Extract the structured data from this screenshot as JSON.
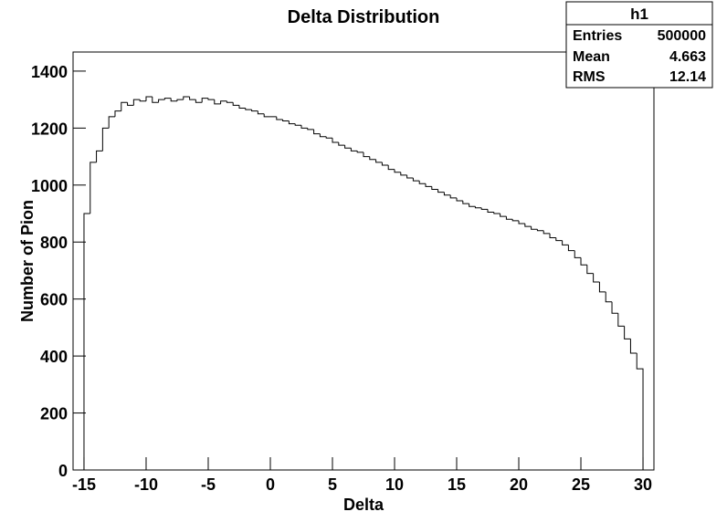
{
  "chart_data": {
    "type": "histogram",
    "title": "Delta Distribution",
    "x_label": "Delta",
    "y_label": "Number of Pion",
    "bins": [
      -15,
      -14.5,
      -14,
      -13.5,
      -13,
      -12.5,
      -12,
      -11.5,
      -11,
      -10.5,
      -10,
      -9.5,
      -9,
      -8.5,
      -8,
      -7.5,
      -7,
      -6.5,
      -6,
      -5.5,
      -5,
      -4.5,
      -4,
      -3.5,
      -3,
      -2.5,
      -2,
      -1.5,
      -1,
      -0.5,
      0,
      0.5,
      1,
      1.5,
      2,
      2.5,
      3,
      3.5,
      4,
      4.5,
      5,
      5.5,
      6,
      6.5,
      7,
      7.5,
      8,
      8.5,
      9,
      9.5,
      10,
      10.5,
      11,
      11.5,
      12,
      12.5,
      13,
      13.5,
      14,
      14.5,
      15,
      15.5,
      16,
      16.5,
      17,
      17.5,
      18,
      18.5,
      19,
      19.5,
      20,
      20.5,
      21,
      21.5,
      22,
      22.5,
      23,
      23.5,
      24,
      24.5,
      25,
      25.5,
      26,
      26.5,
      27,
      27.5,
      28,
      28.5,
      29,
      29.5,
      30
    ],
    "values": [
      900,
      1080,
      1120,
      1200,
      1240,
      1260,
      1290,
      1280,
      1300,
      1295,
      1310,
      1290,
      1300,
      1305,
      1295,
      1300,
      1310,
      1300,
      1290,
      1305,
      1300,
      1285,
      1295,
      1290,
      1280,
      1270,
      1265,
      1260,
      1250,
      1240,
      1240,
      1230,
      1225,
      1215,
      1210,
      1200,
      1195,
      1180,
      1170,
      1165,
      1150,
      1140,
      1130,
      1120,
      1115,
      1100,
      1090,
      1080,
      1070,
      1055,
      1045,
      1035,
      1025,
      1015,
      1005,
      995,
      985,
      975,
      965,
      955,
      945,
      935,
      925,
      920,
      915,
      905,
      900,
      890,
      880,
      875,
      865,
      855,
      845,
      840,
      830,
      815,
      805,
      790,
      770,
      745,
      720,
      690,
      660,
      625,
      590,
      550,
      505,
      460,
      410,
      355
    ],
    "color": "#000000",
    "xlim": [
      -15.88,
      30.88
    ],
    "ylim": [
      0,
      1467
    ],
    "xticks": [
      -15,
      -10,
      -5,
      0,
      5,
      10,
      15,
      20,
      25,
      30
    ],
    "yticks": [
      0,
      200,
      400,
      600,
      800,
      1000,
      1200,
      1400
    ],
    "stats": {
      "name": "h1",
      "entries_label": "Entries",
      "entries": 500000,
      "mean_label": "Mean",
      "mean": 4.663,
      "rms_label": "RMS",
      "rms": 12.14
    }
  }
}
